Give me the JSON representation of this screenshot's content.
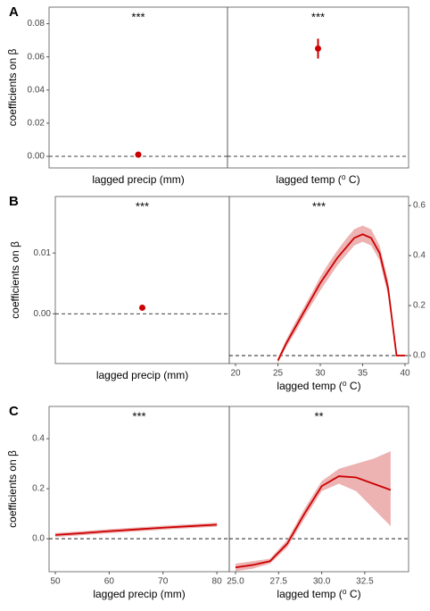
{
  "chart_data": [
    {
      "type": "errorbar",
      "label": "A",
      "ylabel": "coefficients on β",
      "annotation": "***",
      "xlabel": "lagged precip (mm)",
      "values": [
        0.001
      ],
      "errors": [
        0.0008
      ],
      "color": "#cc0000",
      "ylim": [
        -0.007,
        0.09
      ],
      "yticks": [
        {
          "value": 0,
          "label": "0.00"
        },
        {
          "value": 0.02,
          "label": "0.02"
        },
        {
          "value": 0.04,
          "label": "0.04"
        },
        {
          "value": 0.06,
          "label": "0.06"
        },
        {
          "value": 0.08,
          "label": "0.08"
        }
      ],
      "hline": 0
    },
    {
      "type": "errorbar",
      "annotation": "***",
      "xlabel": "lagged temp (⁰ C)",
      "values": [
        0.065
      ],
      "errors": [
        0.006
      ],
      "color": "#cc0000",
      "ylim": [
        -0.007,
        0.09
      ],
      "hline": 0
    },
    {
      "type": "errorbar",
      "label": "B",
      "ylabel": "coefficients on β",
      "annotation": "***",
      "xlabel": "lagged precip (mm)",
      "values": [
        0.001
      ],
      "color": "#cc0000",
      "ylim": [
        -0.0082,
        0.0193
      ],
      "yticks": [
        {
          "value": 0,
          "label": "0.00"
        },
        {
          "value": 0.01,
          "label": "0.01"
        }
      ],
      "hline": 0
    },
    {
      "type": "line",
      "annotation": "***",
      "xlabel": "lagged temp (⁰ C)",
      "yaxis": "right",
      "color": "#cc0000",
      "band_color": "#e8a0a0",
      "x": [
        25,
        26,
        27,
        28,
        29,
        30,
        31,
        32,
        33,
        34,
        35,
        36,
        37,
        38,
        39,
        40
      ],
      "values": [
        -0.02,
        0.05,
        0.11,
        0.17,
        0.23,
        0.29,
        0.34,
        0.39,
        0.43,
        0.47,
        0.485,
        0.47,
        0.41,
        0.27,
        0,
        0
      ],
      "lower": [
        -0.03,
        0.035,
        0.09,
        0.15,
        0.205,
        0.26,
        0.31,
        0.36,
        0.4,
        0.44,
        0.455,
        0.44,
        0.38,
        0.24,
        0,
        0
      ],
      "upper": [
        -0.01,
        0.065,
        0.13,
        0.19,
        0.25,
        0.315,
        0.37,
        0.42,
        0.465,
        0.505,
        0.52,
        0.505,
        0.44,
        0.3,
        0,
        0
      ],
      "xlim": [
        19.26,
        40.42
      ],
      "ylim": [
        -0.032,
        0.636
      ],
      "xticks": [
        20,
        25,
        30,
        35,
        40
      ],
      "yticks": [
        {
          "value": 0,
          "label": "0.0"
        },
        {
          "value": 0.2,
          "label": "0.2"
        },
        {
          "value": 0.4,
          "label": "0.4"
        },
        {
          "value": 0.6,
          "label": "0.6"
        }
      ],
      "hline": 0
    },
    {
      "type": "line",
      "label": "C",
      "ylabel": "coefficients on β",
      "annotation": "***",
      "xlabel": "lagged precip (mm)",
      "color": "#cc0000",
      "band_color": "#e8a0a0",
      "x": [
        50,
        55,
        60,
        65,
        70,
        75,
        80
      ],
      "values": [
        0.015,
        0.022,
        0.03,
        0.037,
        0.044,
        0.05,
        0.056
      ],
      "lower": [
        0.007,
        0.014,
        0.022,
        0.029,
        0.036,
        0.042,
        0.048
      ],
      "upper": [
        0.023,
        0.03,
        0.038,
        0.045,
        0.052,
        0.058,
        0.064
      ],
      "xlim": [
        48.84,
        82.3
      ],
      "ylim": [
        -0.132,
        0.529
      ],
      "xticks": [
        50,
        60,
        70,
        80
      ],
      "yticks": [
        {
          "value": 0,
          "label": "0.0"
        },
        {
          "value": 0.2,
          "label": "0.2"
        },
        {
          "value": 0.4,
          "label": "0.4"
        }
      ],
      "hline": 0
    },
    {
      "type": "line",
      "annotation": "**",
      "xlabel": "lagged temp (⁰ C)",
      "color": "#cc0000",
      "band_color": "#e8a0a0",
      "x": [
        25,
        26,
        27,
        28,
        29,
        30,
        31,
        32,
        33,
        34
      ],
      "values": [
        -0.115,
        -0.105,
        -0.09,
        -0.02,
        0.1,
        0.21,
        0.25,
        0.245,
        0.22,
        0.195
      ],
      "lower": [
        -0.13,
        -0.12,
        -0.1,
        -0.035,
        0.08,
        0.19,
        0.22,
        0.19,
        0.12,
        0.05
      ],
      "upper": [
        -0.1,
        -0.09,
        -0.08,
        -0.005,
        0.12,
        0.23,
        0.28,
        0.3,
        0.32,
        0.35
      ],
      "xlim": [
        24.64,
        35.04
      ],
      "ylim": [
        -0.132,
        0.529
      ],
      "xticks": [
        {
          "value": 25,
          "label": "25.0"
        },
        {
          "value": 27.5,
          "label": "27.5"
        },
        {
          "value": 30,
          "label": "30.0"
        },
        {
          "value": 32.5,
          "label": "32.5"
        }
      ],
      "hline": 0
    }
  ]
}
